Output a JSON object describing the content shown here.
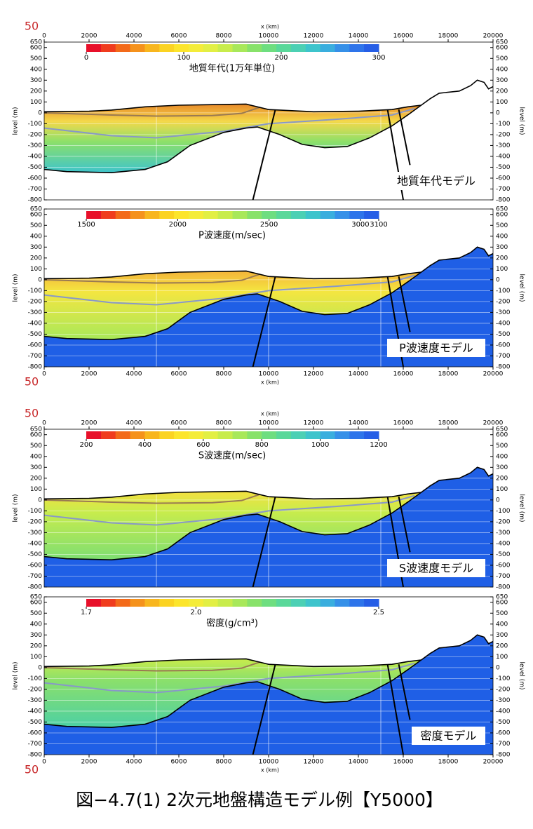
{
  "caption": "図−4.7(1) 2次元地盤構造モデル例【Y5000】",
  "chart_data": [
    {
      "type": "section",
      "x_axis": "top",
      "corner_label": "50",
      "xlabel": "x (km)",
      "ylabel": "level (m)",
      "model_label": "地質年代モデル",
      "colorbar_title": "地質年代(1万年単位)",
      "colorbar_lim": [
        0,
        300
      ],
      "colorbar_ticks": [
        0,
        100,
        200,
        300
      ],
      "fill": "age",
      "basement": false,
      "colors": [
        "#e8102a",
        "#f03c1e",
        "#f36a1a",
        "#f5921c",
        "#f8b61e",
        "#fbd322",
        "#fce52c",
        "#f4ec3a",
        "#e2ef44",
        "#c8ec4c",
        "#a8e85a",
        "#88e26a",
        "#6ede80",
        "#5ad89a",
        "#4cd0b4",
        "#3ec4cc",
        "#3aaede",
        "#3690e8",
        "#2e74ea",
        "#265ee6"
      ],
      "xlim": [
        0,
        20000
      ],
      "xticks": [
        0,
        2000,
        4000,
        6000,
        8000,
        10000,
        12000,
        14000,
        16000,
        18000,
        20000
      ],
      "ylim": [
        -800,
        650
      ],
      "yticks": [
        -800,
        -700,
        -600,
        -500,
        -400,
        -300,
        -200,
        -100,
        0,
        100,
        200,
        300,
        400,
        500,
        600,
        650
      ],
      "grid": true
    },
    {
      "type": "section",
      "x_axis": "bottom",
      "corner_label": "50",
      "xlabel": "x (km)",
      "ylabel": "level (m)",
      "model_label": "P波速度モデル",
      "colorbar_title": "P波速度(m/sec)",
      "colorbar_lim": [
        1500,
        3100
      ],
      "colorbar_ticks": [
        1500,
        2000,
        2500,
        3000,
        3100
      ],
      "fill": "p",
      "basement": true,
      "colors": [
        "#e8102a",
        "#f03c1e",
        "#f36a1a",
        "#f5921c",
        "#f8b61e",
        "#fbd322",
        "#fce52c",
        "#f4ec3a",
        "#e2ef44",
        "#c8ec4c",
        "#a8e85a",
        "#88e26a",
        "#6ede80",
        "#5ad89a",
        "#4cd0b4",
        "#3ec4cc",
        "#3aaede",
        "#3690e8",
        "#2e74ea",
        "#265ee6"
      ],
      "xlim": [
        0,
        20000
      ],
      "xticks": [
        0,
        2000,
        4000,
        6000,
        8000,
        10000,
        12000,
        14000,
        16000,
        18000,
        20000
      ],
      "ylim": [
        -800,
        650
      ],
      "yticks": [
        -800,
        -700,
        -600,
        -500,
        -400,
        -300,
        -200,
        -100,
        0,
        100,
        200,
        300,
        400,
        500,
        600,
        650
      ],
      "grid": true
    },
    {
      "type": "section",
      "x_axis": "top",
      "corner_label": "50",
      "xlabel": "x (km)",
      "ylabel": "level (m)",
      "model_label": "S波速度モデル",
      "colorbar_title": "S波速度(m/sec)",
      "colorbar_lim": [
        200,
        1200
      ],
      "colorbar_ticks": [
        200,
        400,
        600,
        800,
        1000,
        1200
      ],
      "fill": "s",
      "basement": true,
      "colors": [
        "#e8102a",
        "#f03c1e",
        "#f36a1a",
        "#f5921c",
        "#f8b61e",
        "#fbd322",
        "#fce52c",
        "#f4ec3a",
        "#e2ef44",
        "#c8ec4c",
        "#a8e85a",
        "#88e26a",
        "#6ede80",
        "#5ad89a",
        "#4cd0b4",
        "#3ec4cc",
        "#3aaede",
        "#3690e8",
        "#2e74ea",
        "#265ee6"
      ],
      "xlim": [
        0,
        20000
      ],
      "xticks": [
        0,
        2000,
        4000,
        6000,
        8000,
        10000,
        12000,
        14000,
        16000,
        18000,
        20000
      ],
      "ylim": [
        -800,
        650
      ],
      "yticks": [
        -800,
        -700,
        -600,
        -500,
        -400,
        -300,
        -200,
        -100,
        0,
        100,
        200,
        300,
        400,
        500,
        600,
        650
      ],
      "grid": true
    },
    {
      "type": "section",
      "x_axis": "bottom",
      "corner_label": "50",
      "xlabel": "x (km)",
      "ylabel": "level (m)",
      "model_label": "密度モデル",
      "colorbar_title": "密度(g/cm³)",
      "colorbar_lim": [
        1.7,
        2.5
      ],
      "colorbar_ticks": [
        1.7,
        {
          "value": 2,
          "label": "2.0"
        },
        2.5
      ],
      "fill": "d",
      "basement": true,
      "colors": [
        "#e8102a",
        "#f03c1e",
        "#f36a1a",
        "#f5921c",
        "#f8b61e",
        "#fbd322",
        "#fce52c",
        "#f4ec3a",
        "#e2ef44",
        "#c8ec4c",
        "#a8e85a",
        "#88e26a",
        "#6ede80",
        "#5ad89a",
        "#4cd0b4",
        "#3ec4cc",
        "#3aaede",
        "#3690e8",
        "#2e74ea",
        "#265ee6"
      ],
      "xlim": [
        0,
        20000
      ],
      "xticks": [
        0,
        2000,
        4000,
        6000,
        8000,
        10000,
        12000,
        14000,
        16000,
        18000,
        20000
      ],
      "ylim": [
        -800,
        650
      ],
      "yticks": [
        -800,
        -700,
        -600,
        -500,
        -400,
        -300,
        -200,
        -100,
        0,
        100,
        200,
        300,
        400,
        500,
        600,
        650
      ],
      "grid": true
    }
  ]
}
